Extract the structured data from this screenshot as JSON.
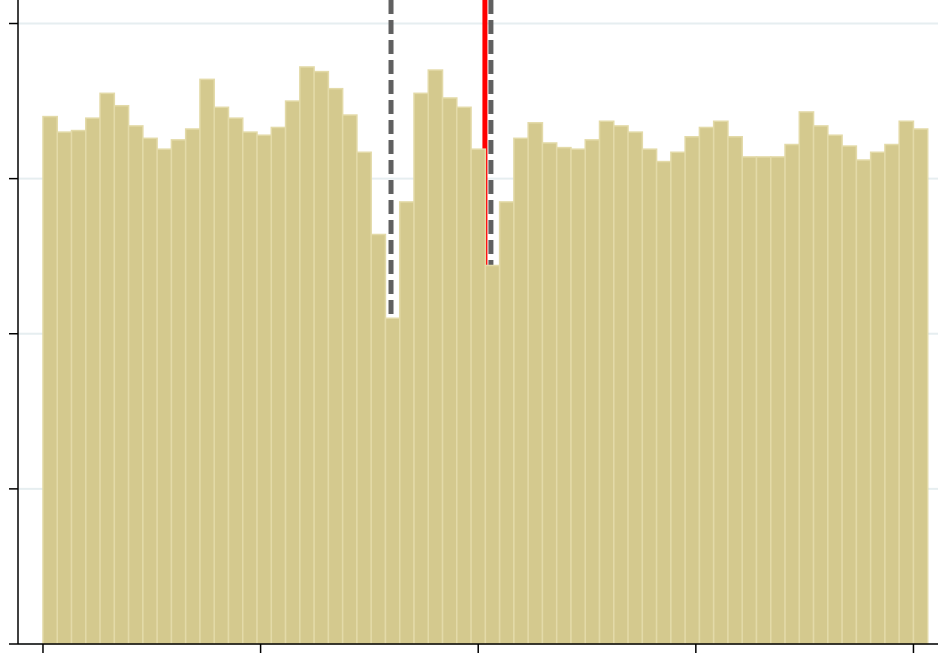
{
  "chart_data": {
    "type": "histogram",
    "bins": [
      0,
      1,
      2,
      3,
      4,
      5,
      6,
      7,
      8,
      9,
      10,
      11,
      12,
      13,
      14,
      15,
      16,
      17,
      18,
      19,
      20,
      21,
      22,
      23,
      24,
      25,
      26,
      27,
      28,
      29,
      30,
      31,
      32,
      33,
      34,
      35,
      36,
      37,
      38,
      39,
      40,
      41,
      42,
      43,
      44,
      45,
      46,
      47,
      48,
      49,
      50,
      51,
      52,
      53,
      54,
      55,
      56,
      57,
      58,
      59,
      60,
      61,
      62
    ],
    "values": [
      3.4,
      3.3,
      3.31,
      3.39,
      3.55,
      3.47,
      3.34,
      3.26,
      3.19,
      3.25,
      3.32,
      3.64,
      3.46,
      3.39,
      3.3,
      3.28,
      3.33,
      3.5,
      3.72,
      3.69,
      3.58,
      3.41,
      3.17,
      2.64,
      2.1,
      2.85,
      3.55,
      3.7,
      3.52,
      3.46,
      3.19,
      2.44,
      2.85,
      3.26,
      3.36,
      3.23,
      3.2,
      3.19,
      3.25,
      3.37,
      3.34,
      3.3,
      3.19,
      3.11,
      3.17,
      3.27,
      3.33,
      3.37,
      3.27,
      3.14,
      3.14,
      3.14,
      3.22,
      3.43,
      3.34,
      3.28,
      3.21,
      3.12,
      3.17,
      3.22,
      3.37,
      3.32
    ],
    "color": "#d4c98e",
    "edge_color": "#e3daa8",
    "xlim": [
      -1.75,
      62.72
    ],
    "xticks": [
      0,
      15.25,
      30.5,
      45.75,
      61
    ],
    "ylim": [
      0,
      4.1
    ],
    "yticks": [
      0,
      1,
      2,
      3,
      4
    ],
    "grid": true,
    "vlines": [
      {
        "x": 24.39,
        "color": "#606060",
        "style": "dashed"
      },
      {
        "x": 30.97,
        "color": "#ff0000",
        "style": "solid"
      },
      {
        "x": 31.39,
        "color": "#606060",
        "style": "dashed"
      }
    ]
  }
}
